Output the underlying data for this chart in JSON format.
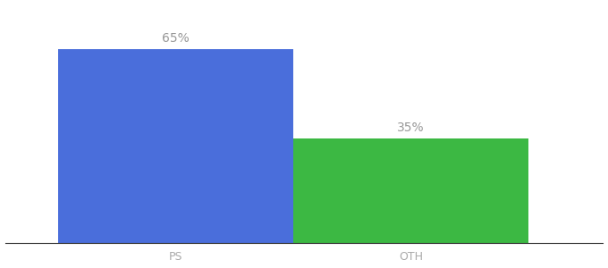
{
  "categories": [
    "PS",
    "OTH"
  ],
  "values": [
    65,
    35
  ],
  "bar_colors": [
    "#4a6edb",
    "#3cb843"
  ],
  "label_texts": [
    "65%",
    "35%"
  ],
  "label_color": "#999999",
  "label_fontsize": 10,
  "tick_fontsize": 9,
  "tick_color": "#aaaaaa",
  "background_color": "#ffffff",
  "bar_width": 0.55,
  "ylim": [
    0,
    80
  ],
  "x_positions": [
    0.3,
    0.85
  ],
  "xlim": [
    -0.1,
    1.3
  ]
}
